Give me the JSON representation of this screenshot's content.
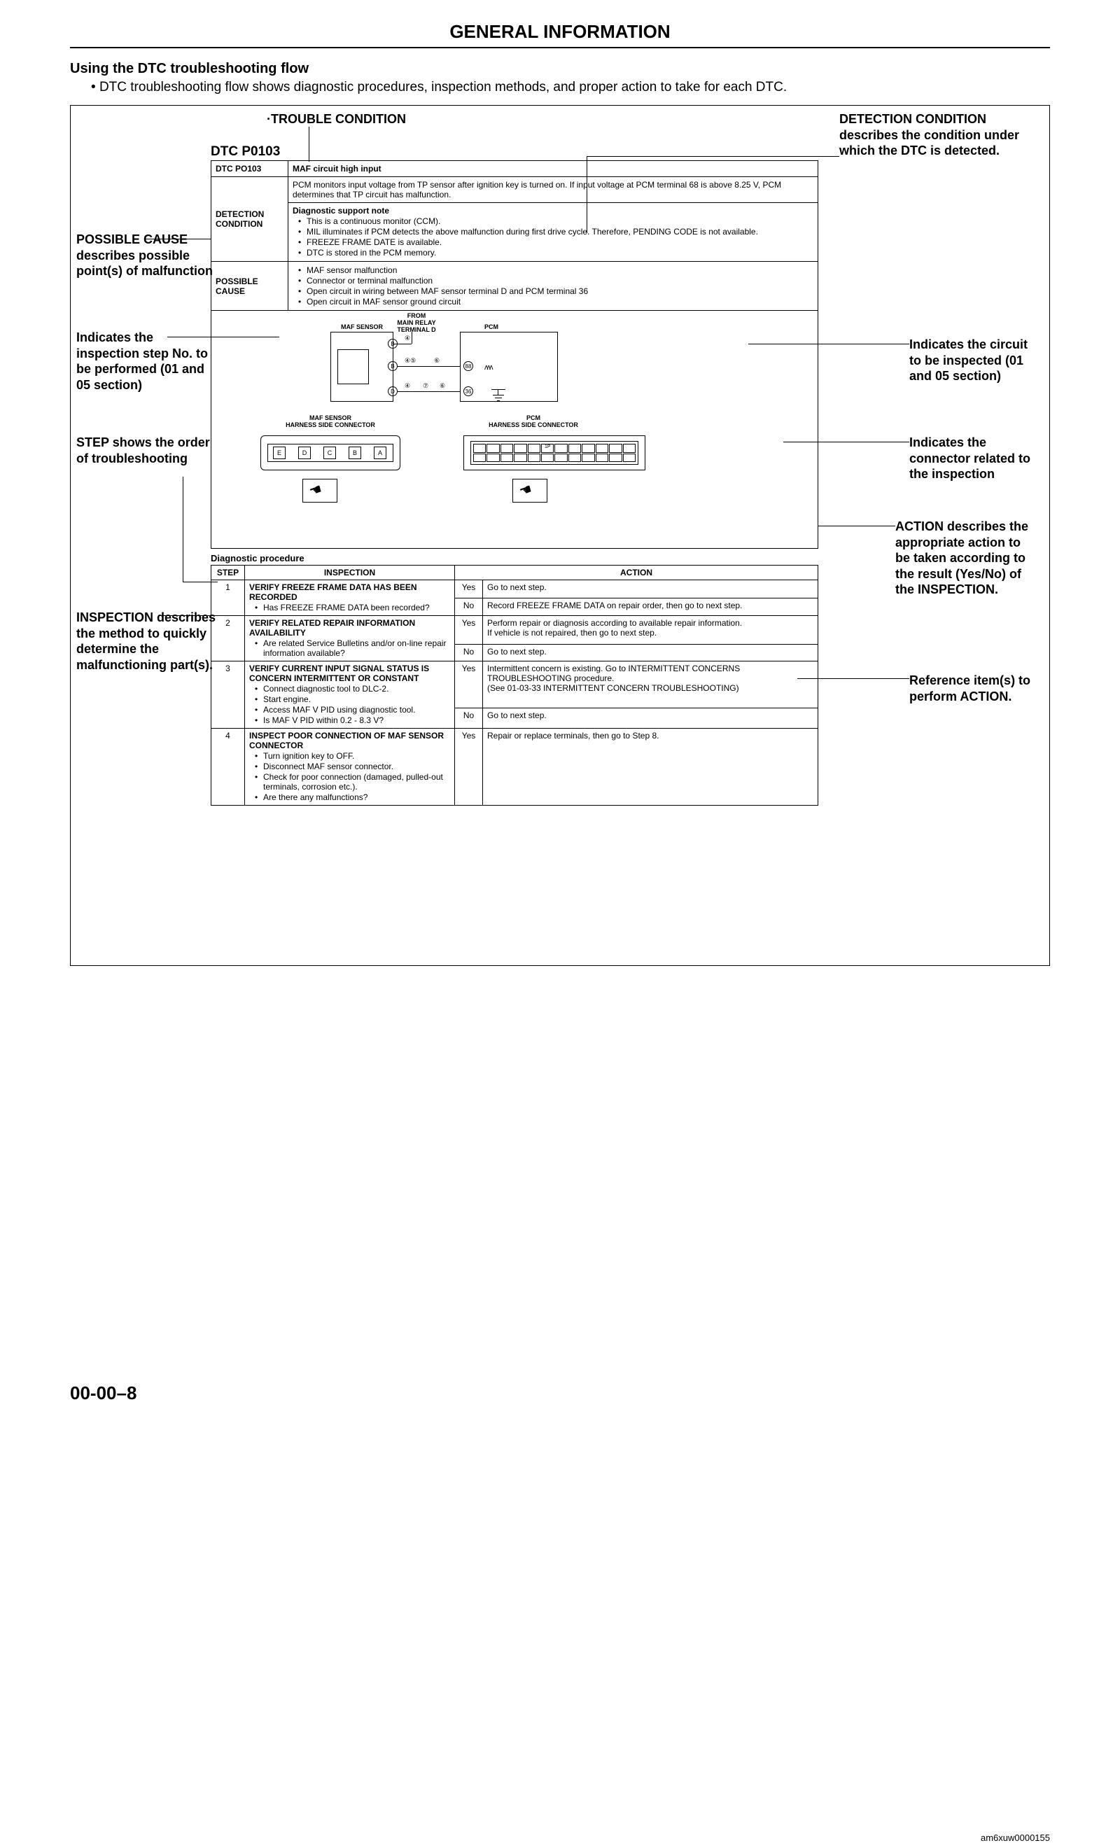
{
  "header": "GENERAL INFORMATION",
  "section_title": "Using the DTC troubleshooting flow",
  "section_intro": "DTC troubleshooting flow shows diagnostic procedures, inspection methods, and proper action to take for each DTC.",
  "dtc_code": "DTC P0103",
  "callouts": {
    "trouble_condition": "TROUBLE CONDITION",
    "detection_condition": "DETECTION CONDITION describes  the condition under which the DTC is detected.",
    "possible_cause": "POSSIBLE CAUSE describes possible point(s) of malfunction",
    "step_no": "Indicates the inspection step No. to be performed (01 and 05 section)",
    "step_order": "STEP shows the order of troubleshooting",
    "inspection": "INSPECTION describes the method to quickly determine the malfunctioning part(s).",
    "circuit": "Indicates the circuit to be inspected (01 and 05 section)",
    "connector": "Indicates the connector related to the inspection",
    "action": "ACTION describes the appropriate action to be taken according to the result (Yes/No) of the INSPECTION.",
    "reference": "Reference item(s) to perform ACTION."
  },
  "info_rows": {
    "dtc_label": "DTC PO103",
    "dtc_title": "MAF circuit high input",
    "pcm_desc": "PCM monitors input voltage from TP sensor after ignition key is turned on. If input voltage at PCM terminal 68 is above 8.25 V, PCM determines that TP circuit has malfunction.",
    "det_label": "DETECTION CONDITION",
    "det_note_title": "Diagnostic support note",
    "det_bullets": [
      "This is a continuous monitor (CCM).",
      "MIL illuminates if PCM detects the above malfunction during first drive cycle. Therefore, PENDING CODE is not available.",
      "FREEZE FRAME DATE is available.",
      "DTC is stored in the PCM memory."
    ],
    "pc_label": "POSSIBLE CAUSE",
    "pc_bullets": [
      "MAF sensor malfunction",
      "Connector or terminal malfunction",
      "Open circuit in wiring between MAF sensor terminal D and PCM terminal 36",
      "Open circuit in MAF sensor ground circuit"
    ]
  },
  "diagram_labels": {
    "maf_sensor": "MAF SENSOR",
    "from_relay": "FROM\nMAIN RELAY\nTERMINAL D",
    "pcm": "PCM",
    "maf_conn": "MAF SENSOR\nHARNESS SIDE CONNECTOR",
    "pcm_conn": "PCM\nHARNESS SIDE CONNECTOR",
    "pins": [
      "E",
      "D",
      "C",
      "B",
      "A"
    ],
    "pcm_pin": "1P"
  },
  "diag_proc_title": "Diagnostic procedure",
  "proc_headers": {
    "step": "STEP",
    "inspection": "INSPECTION",
    "action": "ACTION"
  },
  "proc": [
    {
      "step": "1",
      "inspection_title": "VERIFY FREEZE FRAME DATA HAS BEEN RECORDED",
      "inspection_bullets": [
        "Has FREEZE FRAME DATA been recorded?"
      ],
      "actions": [
        {
          "yn": "Yes",
          "text": "Go to next step."
        },
        {
          "yn": "No",
          "text": "Record FREEZE FRAME DATA on repair order, then go to next step."
        }
      ]
    },
    {
      "step": "2",
      "inspection_title": "VERIFY RELATED REPAIR INFORMATION AVAILABILITY",
      "inspection_bullets": [
        "Are related Service Bulletins and/or on-line repair information available?"
      ],
      "actions": [
        {
          "yn": "Yes",
          "text": "Perform repair or diagnosis according to available repair information.\nIf vehicle is not repaired, then go to next step."
        },
        {
          "yn": "No",
          "text": "Go to next step."
        }
      ]
    },
    {
      "step": "3",
      "inspection_title": "VERIFY CURRENT INPUT SIGNAL STATUS IS CONCERN INTERMITTENT OR CONSTANT",
      "inspection_bullets": [
        "Connect diagnostic tool to DLC-2.",
        "Start engine.",
        "Access MAF V PID using diagnostic tool.",
        "Is MAF V PID within 0.2 - 8.3 V?"
      ],
      "actions": [
        {
          "yn": "Yes",
          "text": "Intermittent concern is existing. Go to INTERMITTENT CONCERNS TROUBLESHOOTING procedure.\n(See 01-03-33 INTERMITTENT CONCERN TROUBLESHOOTING)"
        },
        {
          "yn": "No",
          "text": "Go to next step."
        }
      ]
    },
    {
      "step": "4",
      "inspection_title": "INSPECT POOR CONNECTION OF MAF SENSOR CONNECTOR",
      "inspection_bullets": [
        "Turn ignition key to OFF.",
        "Disconnect MAF sensor connector.",
        "Check for poor connection (damaged, pulled-out terminals, corrosion etc.).",
        "Are there any malfunctions?"
      ],
      "actions": [
        {
          "yn": "Yes",
          "text": "Repair or replace terminals, then go to Step 8."
        }
      ]
    }
  ],
  "img_ref": "am6xuw0000155",
  "page_number": "00-00–8"
}
